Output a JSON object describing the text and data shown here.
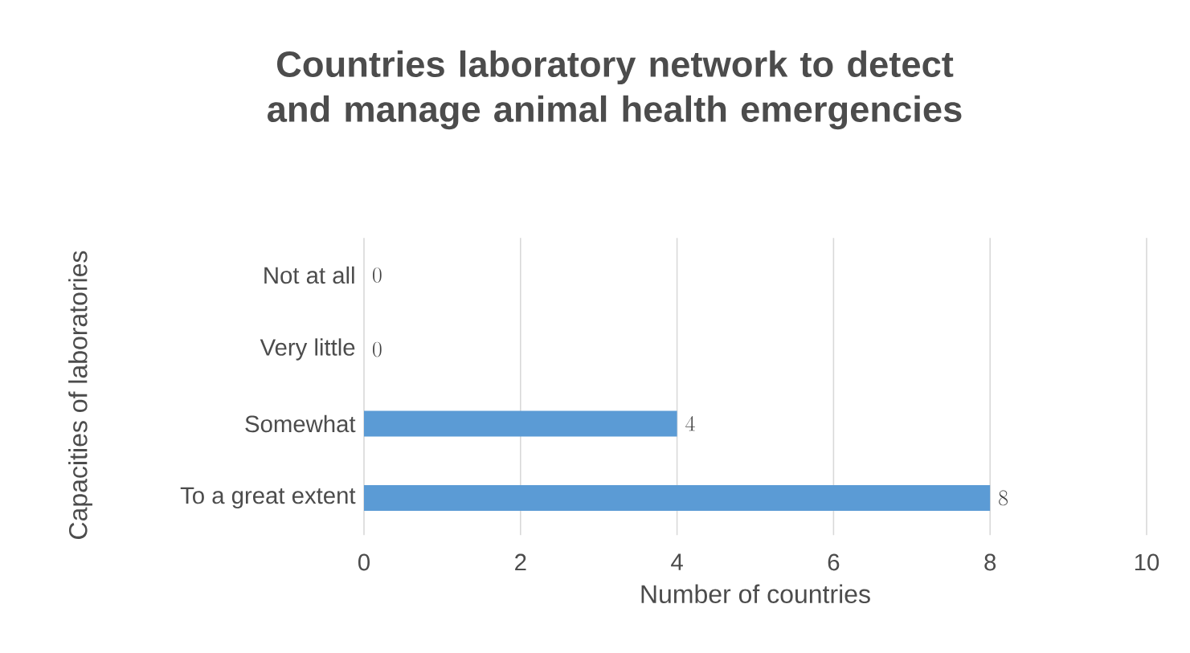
{
  "chart_data": {
    "type": "bar",
    "orientation": "horizontal",
    "title": "Countries laboratory network to detect and manage animal health emergencies",
    "xlabel": "Number of countries",
    "ylabel": "Capacities of laboratories",
    "categories": [
      "Not at all",
      "Very little",
      "Somewhat",
      "To a great extent"
    ],
    "values": [
      0,
      0,
      4,
      8
    ],
    "color": "#5b9bd5",
    "xlim": [
      0,
      10
    ],
    "xticks": [
      0,
      2,
      4,
      6,
      8,
      10
    ],
    "grid": "x",
    "data_labels": true
  }
}
